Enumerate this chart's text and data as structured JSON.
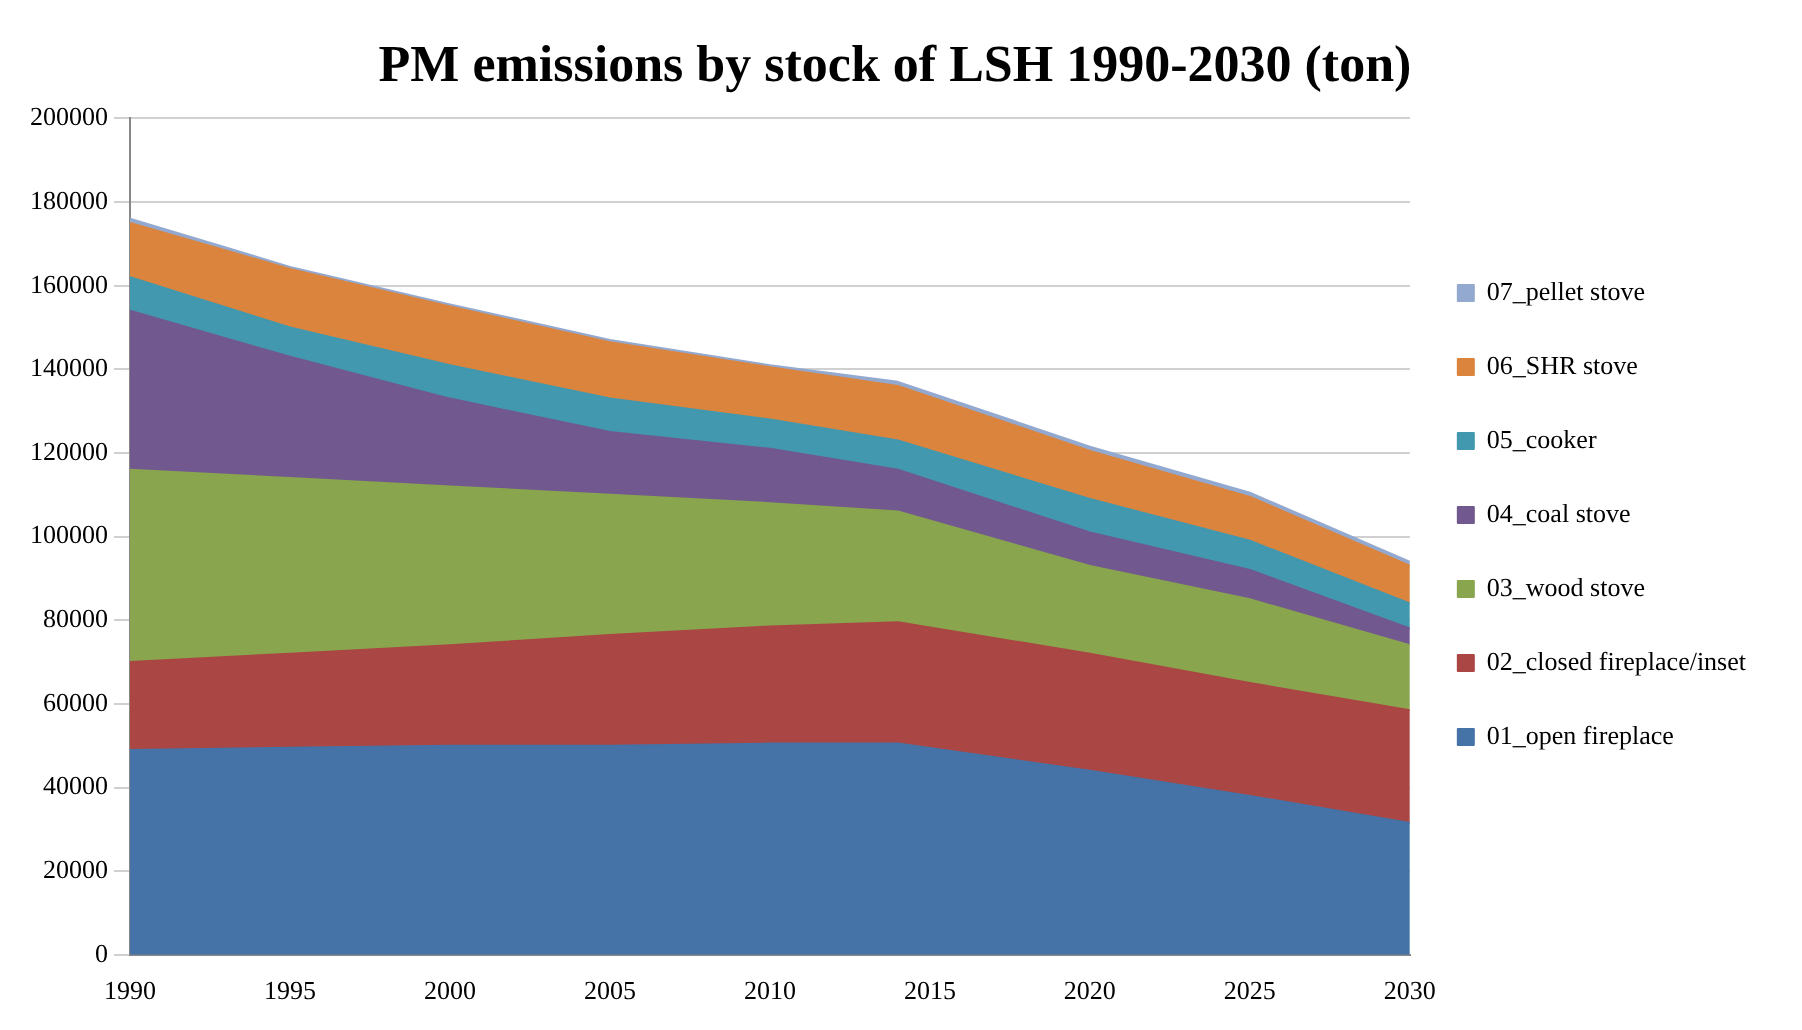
{
  "chart_data": {
    "type": "area",
    "stacked": true,
    "title": "PM emissions by stock of LSH 1990-2030 (ton)",
    "x": [
      1990,
      1995,
      2000,
      2005,
      2010,
      2014,
      2020,
      2025,
      2030
    ],
    "series": [
      {
        "name": "01_open fireplace",
        "color": "#4572a7",
        "values": [
          49000,
          49500,
          50000,
          50000,
          50500,
          50500,
          44000,
          38000,
          31500
        ]
      },
      {
        "name": "02_closed fireplace/inset",
        "color": "#aa4643",
        "values": [
          21000,
          22500,
          24000,
          26500,
          28000,
          29000,
          28000,
          27000,
          27000
        ]
      },
      {
        "name": "03_wood stove",
        "color": "#89a54e",
        "values": [
          46000,
          42000,
          38000,
          33500,
          29500,
          26500,
          21000,
          20000,
          15500
        ]
      },
      {
        "name": "04_coal stove",
        "color": "#71588f",
        "values": [
          38000,
          29000,
          21000,
          15000,
          13000,
          10000,
          8000,
          7000,
          4000
        ]
      },
      {
        "name": "05_cooker",
        "color": "#4198af",
        "values": [
          8000,
          7000,
          8000,
          8000,
          7000,
          7000,
          8000,
          7000,
          6000
        ]
      },
      {
        "name": "06_SHR stove",
        "color": "#db843d",
        "values": [
          13000,
          14000,
          14000,
          13500,
          12500,
          13000,
          11500,
          10500,
          9000
        ]
      },
      {
        "name": "07_pellet stove",
        "color": "#93a9cf",
        "values": [
          1000,
          500,
          500,
          500,
          500,
          1000,
          1000,
          1000,
          1000
        ]
      }
    ],
    "xlim": [
      1990,
      2030
    ],
    "xticks": [
      1990,
      1995,
      2000,
      2005,
      2010,
      2015,
      2020,
      2025,
      2030
    ],
    "ylim": [
      0,
      200000
    ],
    "yticks": [
      0,
      20000,
      40000,
      60000,
      80000,
      100000,
      120000,
      140000,
      160000,
      180000,
      200000
    ],
    "grid": "y",
    "legend": "right",
    "marker": "none"
  }
}
